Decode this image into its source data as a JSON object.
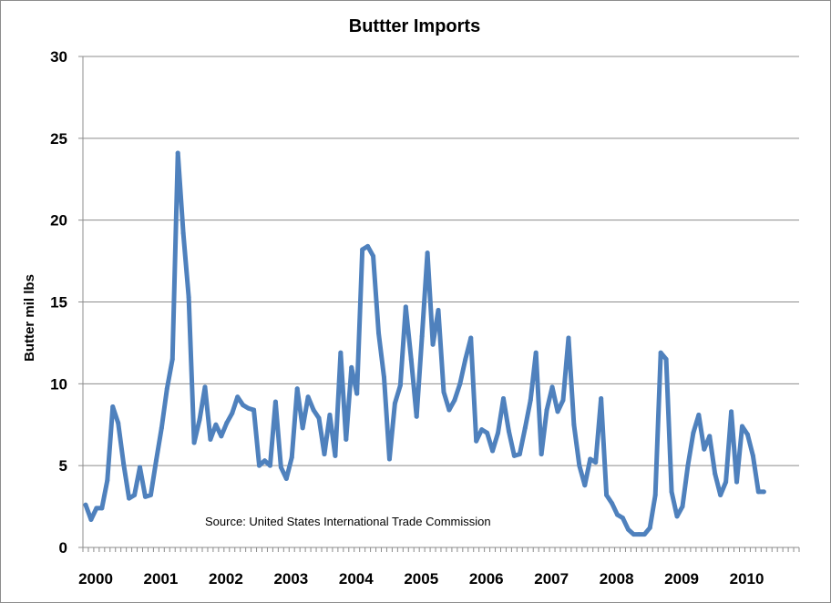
{
  "chart_data": {
    "type": "line",
    "title": "Buttter Imports",
    "ylabel": "Butter mil lbs",
    "xlabel": "",
    "ylim": [
      0,
      30
    ],
    "yticks": [
      "0",
      "5",
      "10",
      "15",
      "20",
      "25",
      "30"
    ],
    "xticks": [
      "2000",
      "2001",
      "2002",
      "2003",
      "2004",
      "2005",
      "2006",
      "2007",
      "2008",
      "2009",
      "2010"
    ],
    "annotation": "Source: United States International Trade Commission",
    "grid": true,
    "legend": "none",
    "line_color": "#4f81bd",
    "series": [
      {
        "frequency": "monthly",
        "start": "2000-01",
        "values": [
          2.6,
          1.7,
          2.4,
          2.4,
          4.1,
          8.6,
          7.6,
          5.1,
          3.0,
          3.2,
          4.9,
          3.1,
          3.2,
          5.3,
          7.3,
          9.7,
          11.5,
          24.1,
          19.2,
          15.3,
          6.4,
          7.8,
          9.8,
          6.6,
          7.5,
          6.8,
          7.6,
          8.2,
          9.2,
          8.7,
          8.5,
          8.4,
          5.0,
          5.3,
          5.0,
          8.9,
          4.9,
          4.2,
          5.5,
          9.7,
          7.3,
          9.2,
          8.4,
          7.9,
          5.7,
          8.1,
          5.6,
          11.9,
          6.6,
          11.0,
          9.4,
          18.2,
          18.4,
          17.8,
          13.1,
          10.4,
          5.4,
          8.8,
          9.9,
          14.7,
          11.5,
          8.0,
          12.9,
          18.0,
          12.4,
          14.5,
          9.5,
          8.4,
          9.0,
          10.0,
          11.5,
          12.8,
          6.5,
          7.2,
          7.0,
          5.9,
          7.0,
          9.1,
          7.1,
          5.6,
          5.7,
          7.3,
          9.0,
          11.9,
          5.7,
          8.4,
          9.8,
          8.3,
          9.0,
          12.8,
          7.5,
          5.0,
          3.8,
          5.4,
          5.2,
          9.1,
          3.2,
          2.7,
          2.0,
          1.8,
          1.1,
          0.8,
          0.8,
          0.8,
          1.2,
          3.2,
          11.9,
          11.5,
          3.4,
          1.9,
          2.5,
          5.0,
          7.0,
          8.1,
          6.0,
          6.8,
          4.5,
          3.2,
          4.0,
          8.3,
          4.0,
          7.4,
          6.9,
          5.6,
          3.4,
          3.4
        ]
      }
    ]
  }
}
